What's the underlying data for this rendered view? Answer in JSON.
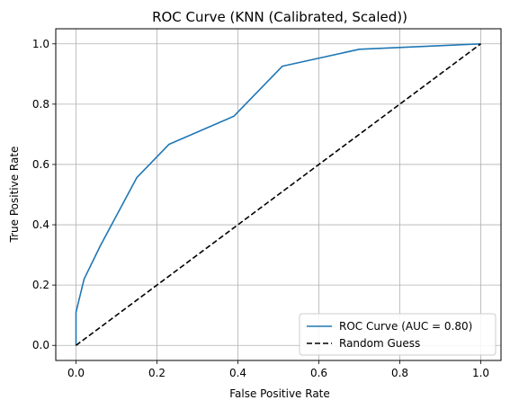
{
  "chart_data": {
    "type": "line",
    "title": "ROC Curve (KNN (Calibrated, Scaled))",
    "xlabel": "False Positive Rate",
    "ylabel": "True Positive Rate",
    "xlim": [
      -0.05,
      1.05
    ],
    "ylim": [
      -0.05,
      1.05
    ],
    "xticks": [
      "0.0",
      "0.2",
      "0.4",
      "0.6",
      "0.8",
      "1.0"
    ],
    "yticks": [
      "0.0",
      "0.2",
      "0.4",
      "0.6",
      "0.8",
      "1.0"
    ],
    "grid": true,
    "legend_position": "lower-right",
    "series": [
      {
        "name": "ROC Curve (AUC = 0.80)",
        "color": "#1f77b4",
        "style": "solid",
        "x": [
          0.0,
          0.0,
          0.0,
          0.02,
          0.06,
          0.15,
          0.23,
          0.39,
          0.51,
          0.7,
          1.0
        ],
        "y": [
          0.0,
          0.11,
          0.11,
          0.22,
          0.33,
          0.556,
          0.667,
          0.76,
          0.926,
          0.982,
          1.0
        ]
      },
      {
        "name": "Random Guess",
        "color": "#000000",
        "style": "dashed",
        "x": [
          0.0,
          1.0
        ],
        "y": [
          0.0,
          1.0
        ]
      }
    ]
  }
}
